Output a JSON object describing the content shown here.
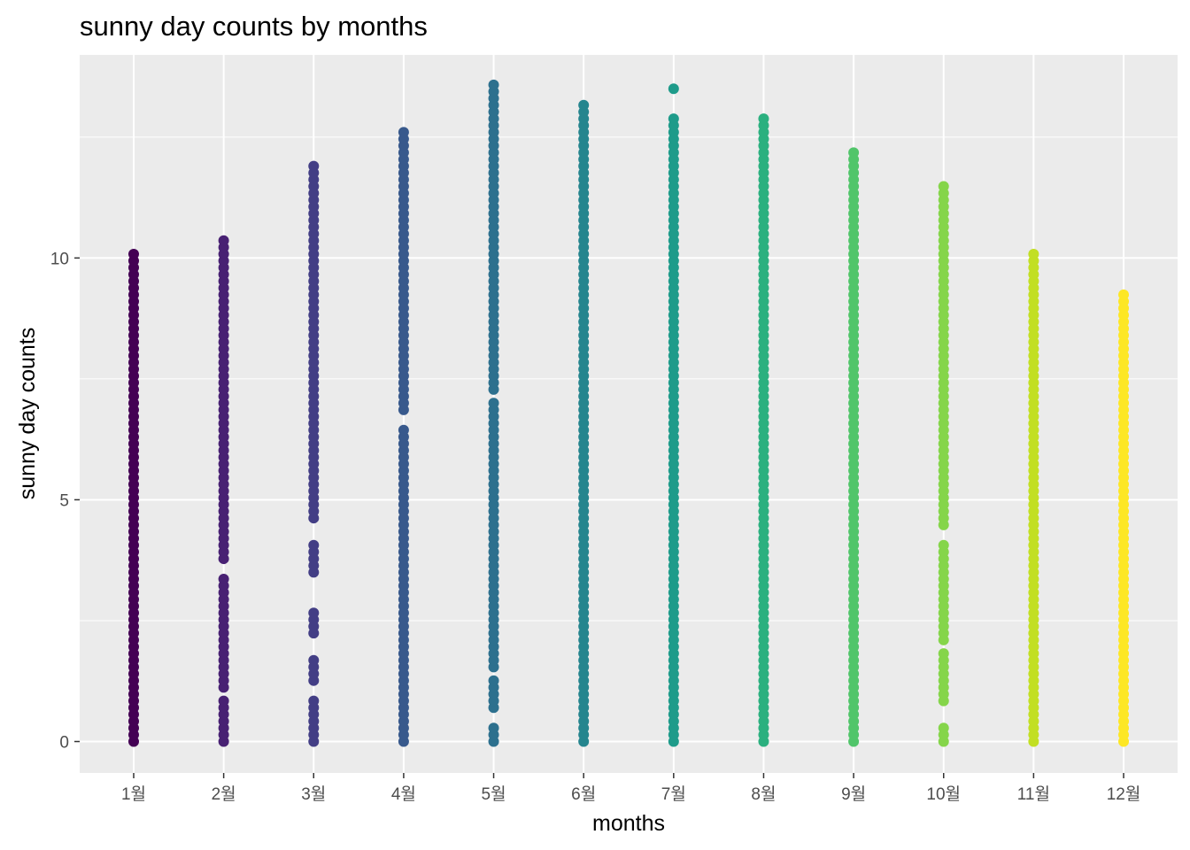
{
  "chart_data": {
    "type": "scatter",
    "title": "sunny day counts by months",
    "xlabel": "months",
    "ylabel": "sunny day counts",
    "categories": [
      "1월",
      "2월",
      "3월",
      "4월",
      "5월",
      "6월",
      "7월",
      "8월",
      "9월",
      "10월",
      "11월",
      "12월"
    ],
    "ylim": [
      -0.65,
      14.2
    ],
    "y_ticks": [
      0,
      5,
      10
    ],
    "y_tick_labels": [
      "0",
      "5",
      "10"
    ],
    "grid": true,
    "legend": "none",
    "colors": [
      "#440154",
      "#482173",
      "#433E85",
      "#38598C",
      "#2D708E",
      "#25858E",
      "#1E9B8A",
      "#2BB07F",
      "#51C56A",
      "#85D54A",
      "#C2DF23",
      "#FDE725"
    ],
    "series": [
      {
        "category": "1월",
        "min": 0,
        "max": 10.1,
        "gaps": []
      },
      {
        "category": "2월",
        "min": 0,
        "max": 10.4,
        "gaps": [
          [
            0.9,
            1.1
          ],
          [
            3.5,
            3.7
          ]
        ]
      },
      {
        "category": "3월",
        "min": 0,
        "max": 11.9,
        "gaps": [
          [
            0.9,
            1.2
          ],
          [
            1.7,
            2.2
          ],
          [
            2.8,
            3.4
          ],
          [
            4.1,
            4.6
          ]
        ]
      },
      {
        "category": "4월",
        "min": 0,
        "max": 12.7,
        "gaps": [
          [
            6.5,
            6.8
          ]
        ]
      },
      {
        "category": "5월",
        "min": 0,
        "max": 13.6,
        "gaps": [
          [
            0.4,
            0.6
          ],
          [
            1.3,
            1.5
          ],
          [
            7.0,
            7.2
          ]
        ]
      },
      {
        "category": "6월",
        "min": 0,
        "max": 13.2,
        "gaps": []
      },
      {
        "category": "7월",
        "min": 0,
        "max": 12.9,
        "gaps": [],
        "outliers": [
          13.5
        ]
      },
      {
        "category": "8월",
        "min": 0,
        "max": 13.0,
        "gaps": []
      },
      {
        "category": "9월",
        "min": 0,
        "max": 12.3,
        "gaps": []
      },
      {
        "category": "10월",
        "min": 0,
        "max": 11.5,
        "gaps": [
          [
            0.3,
            0.8
          ],
          [
            1.9,
            2.1
          ],
          [
            4.2,
            4.4
          ]
        ]
      },
      {
        "category": "11월",
        "min": 0,
        "max": 10.2,
        "gaps": []
      },
      {
        "category": "12월",
        "min": 0,
        "max": 9.3,
        "gaps": []
      }
    ]
  }
}
